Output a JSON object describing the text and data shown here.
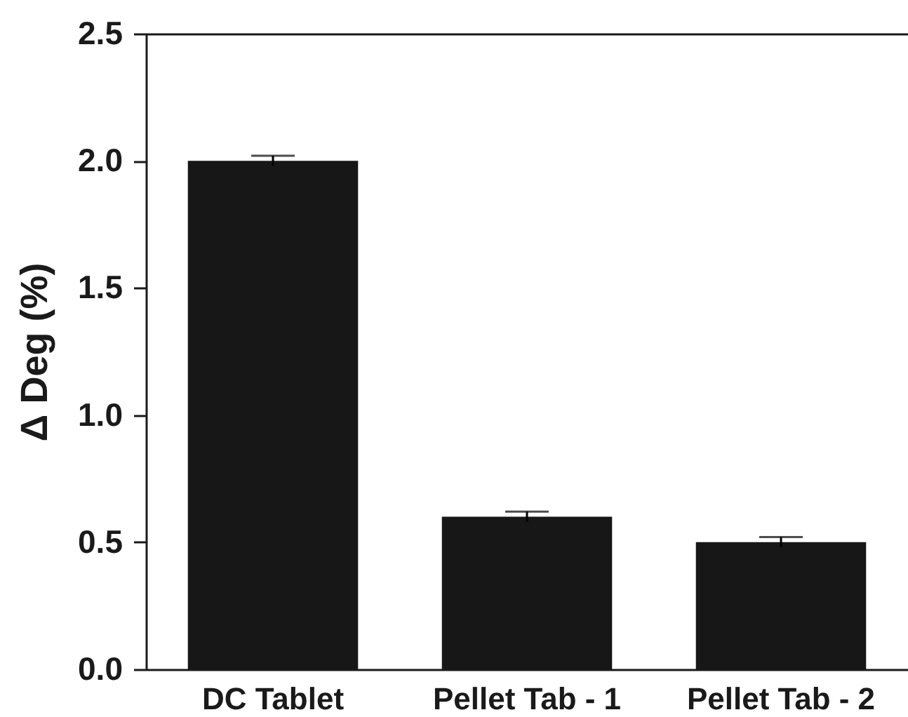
{
  "chart_data": {
    "type": "bar",
    "ylabel": "Δ Deg (%)",
    "categories": [
      "DC Tablet",
      "Pellet Tab - 1",
      "Pellet Tab - 2"
    ],
    "values": [
      2.0,
      0.6,
      0.5
    ],
    "errors": [
      0.02,
      0.02,
      0.02
    ],
    "color": "#171717",
    "ylim": [
      0,
      2.5
    ],
    "yticks": [
      {
        "value": 0,
        "label": "0.0"
      },
      0.5,
      {
        "value": 1,
        "label": "1.0"
      },
      1.5,
      {
        "value": 2,
        "label": "2.0"
      },
      2.5
    ]
  }
}
